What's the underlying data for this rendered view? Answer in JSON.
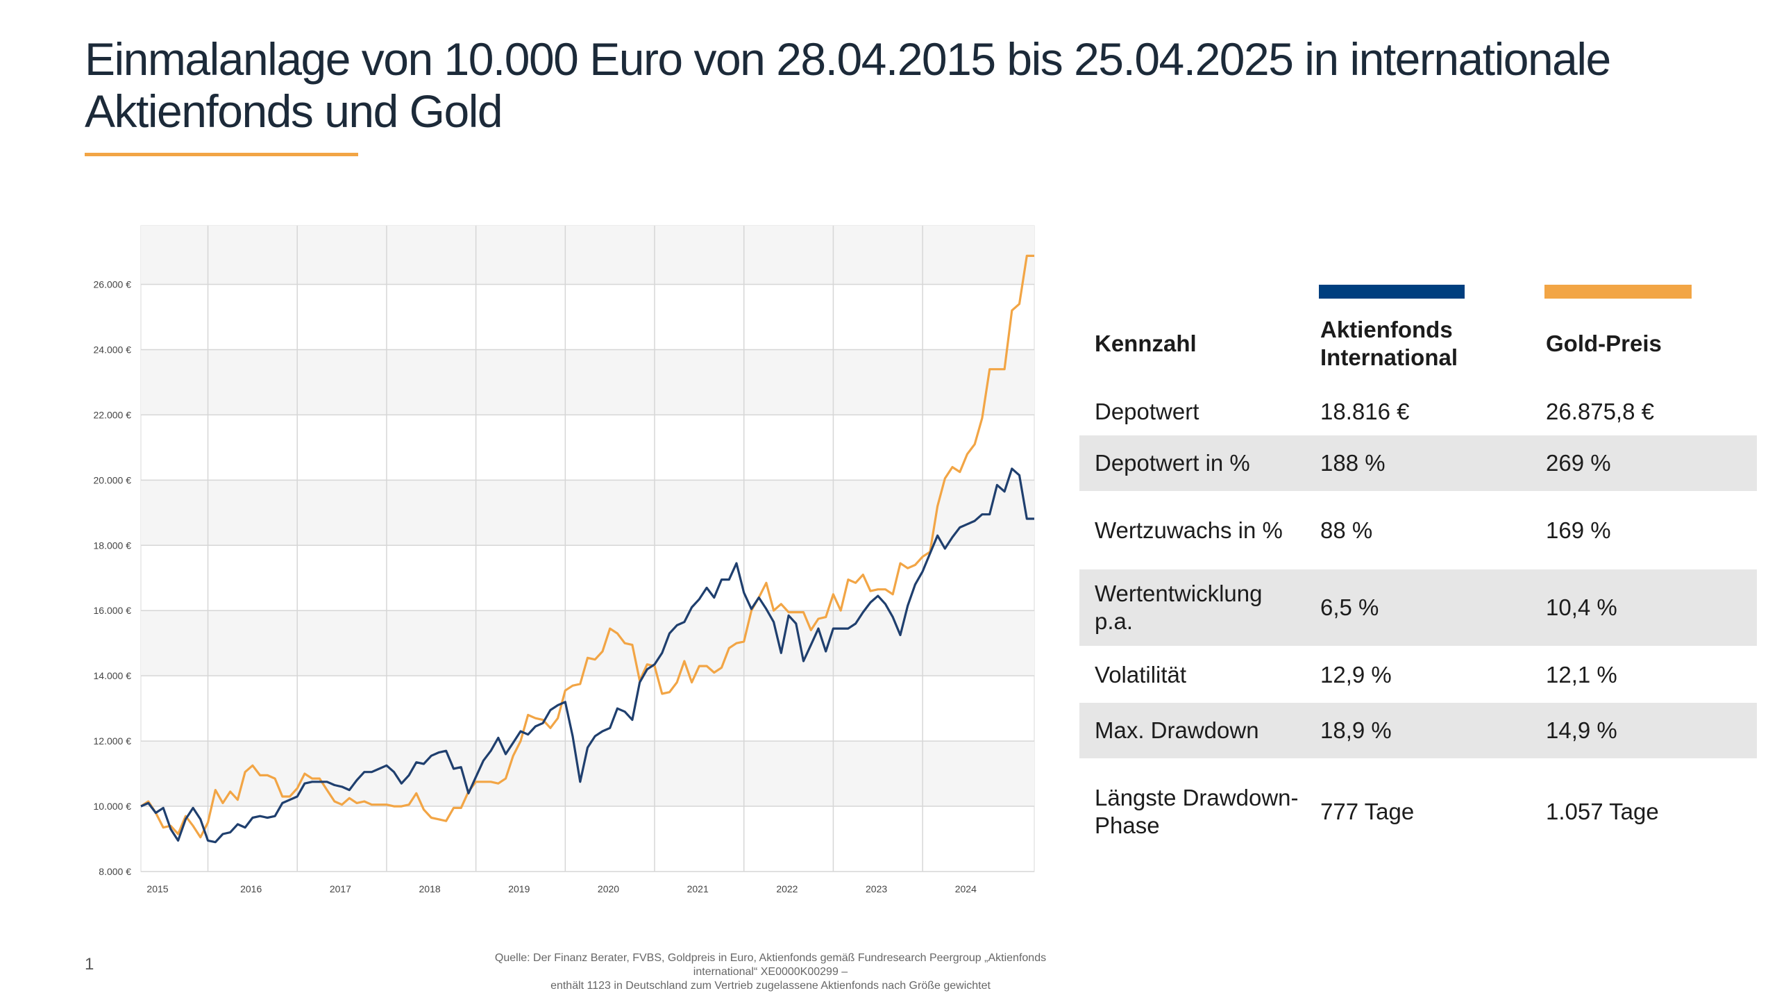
{
  "title": "Einmalanlage von 10.000 Euro von 28.04.2015 bis 25.04.2025 in internationale Aktienfonds und Gold",
  "page_number": "1",
  "source": {
    "line1": "Quelle: Der Finanz Berater, FVBS, Goldpreis in Euro, Aktienfonds gemäß Fundresearch Peergroup „Aktienfonds international“ XE0000K00299 –",
    "line2": "enthält 1123 in Deutschland zum Vertrieb zugelassene Aktienfonds nach Größe gewichtet"
  },
  "colors": {
    "fund": "#1f3f6e",
    "gold": "#f2a545",
    "fund_legend": "#003f7f",
    "accent": "#f2a545"
  },
  "table": {
    "headers": {
      "metric": "Kennzahl",
      "fund": "Aktienfonds International",
      "gold": "Gold-Preis"
    },
    "rows": [
      {
        "metric": "Depotwert",
        "fund": "18.816 €",
        "gold": "26.875,8 €",
        "shaded": false
      },
      {
        "metric": "Depotwert in %",
        "fund": "188 %",
        "gold": "269 %",
        "shaded": true
      },
      {
        "metric": "Wertzuwachs in %",
        "fund": "88 %",
        "gold": "169 %",
        "shaded": false
      },
      {
        "metric": "Wertentwicklung p.a.",
        "fund": "6,5 %",
        "gold": "10,4 %",
        "shaded": true
      },
      {
        "metric": "Volatilität",
        "fund": "12,9 %",
        "gold": "12,1 %",
        "shaded": false
      },
      {
        "metric": "Max. Drawdown",
        "fund": "18,9 %",
        "gold": "14,9 %",
        "shaded": true
      },
      {
        "metric": "Längste Drawdown-Phase",
        "fund": "777 Tage",
        "gold": "1.057 Tage",
        "shaded": false
      }
    ]
  },
  "chart_data": {
    "type": "line",
    "x_start": "2015-04",
    "x_step": "1 month",
    "x_tick_labels": [
      "2015",
      "2016",
      "2017",
      "2018",
      "2019",
      "2020",
      "2021",
      "2022",
      "2023",
      "2024"
    ],
    "y_tick_labels": [
      "8.000 €",
      "10.000 €",
      "12.000 €",
      "14.000 €",
      "16.000 €",
      "18.000 €",
      "20.000 €",
      "22.000 €",
      "24.000 €",
      "26.000 €"
    ],
    "ylim": [
      8000,
      27800
    ],
    "grid": true,
    "series": [
      {
        "name": "Aktienfonds International",
        "color": "#1f3f6e",
        "values": [
          10000,
          10100,
          9800,
          9950,
          9300,
          8950,
          9600,
          9950,
          9600,
          8950,
          8900,
          9150,
          9200,
          9450,
          9350,
          9650,
          9700,
          9650,
          9700,
          10100,
          10200,
          10300,
          10700,
          10750,
          10750,
          10750,
          10650,
          10600,
          10500,
          10800,
          11050,
          11050,
          11150,
          11250,
          11050,
          10700,
          10950,
          11350,
          11300,
          11550,
          11650,
          11700,
          11150,
          11200,
          10400,
          10900,
          11400,
          11700,
          12100,
          11600,
          11950,
          12300,
          12200,
          12450,
          12550,
          12950,
          13100,
          13200,
          12150,
          10750,
          11800,
          12150,
          12300,
          12400,
          13000,
          12900,
          12650,
          13800,
          14200,
          14350,
          14700,
          15300,
          15550,
          15650,
          16100,
          16350,
          16700,
          16400,
          16950,
          16950,
          17450,
          16550,
          16050,
          16400,
          16050,
          15650,
          14700,
          15850,
          15600,
          14450,
          14950,
          15450,
          14750,
          15450,
          15450,
          15450,
          15600,
          15950,
          16250,
          16450,
          16200,
          15800,
          15250,
          16150,
          16800,
          17200,
          17750,
          18300,
          17900,
          18250,
          18550,
          18650,
          18750,
          18950,
          18950,
          19850,
          19650,
          20350,
          20150,
          18816,
          18816
        ]
      },
      {
        "name": "Gold-Preis",
        "color": "#f2a545",
        "values": [
          10000,
          10150,
          9800,
          9350,
          9400,
          9150,
          9700,
          9400,
          9050,
          9500,
          10500,
          10100,
          10450,
          10200,
          11050,
          11250,
          10950,
          10950,
          10850,
          10300,
          10300,
          10550,
          11000,
          10850,
          10850,
          10500,
          10150,
          10050,
          10250,
          10100,
          10150,
          10050,
          10050,
          10050,
          10000,
          10000,
          10050,
          10400,
          9900,
          9650,
          9600,
          9550,
          9950,
          9950,
          10450,
          10750,
          10750,
          10750,
          10700,
          10850,
          11550,
          12000,
          12800,
          12700,
          12650,
          12400,
          12700,
          13550,
          13700,
          13750,
          14550,
          14500,
          14750,
          15450,
          15300,
          15000,
          14950,
          13850,
          14350,
          14300,
          13450,
          13500,
          13800,
          14450,
          13800,
          14300,
          14300,
          14100,
          14250,
          14850,
          15000,
          15050,
          16000,
          16400,
          16850,
          16000,
          16200,
          15950,
          15950,
          15950,
          15400,
          15750,
          15800,
          16500,
          16000,
          16950,
          16850,
          17100,
          16600,
          16650,
          16650,
          16500,
          17450,
          17300,
          17400,
          17650,
          17800,
          19200,
          20050,
          20400,
          20250,
          20800,
          21100,
          21900,
          23400,
          23400,
          23400,
          25200,
          25400,
          26875,
          26875
        ]
      }
    ]
  }
}
